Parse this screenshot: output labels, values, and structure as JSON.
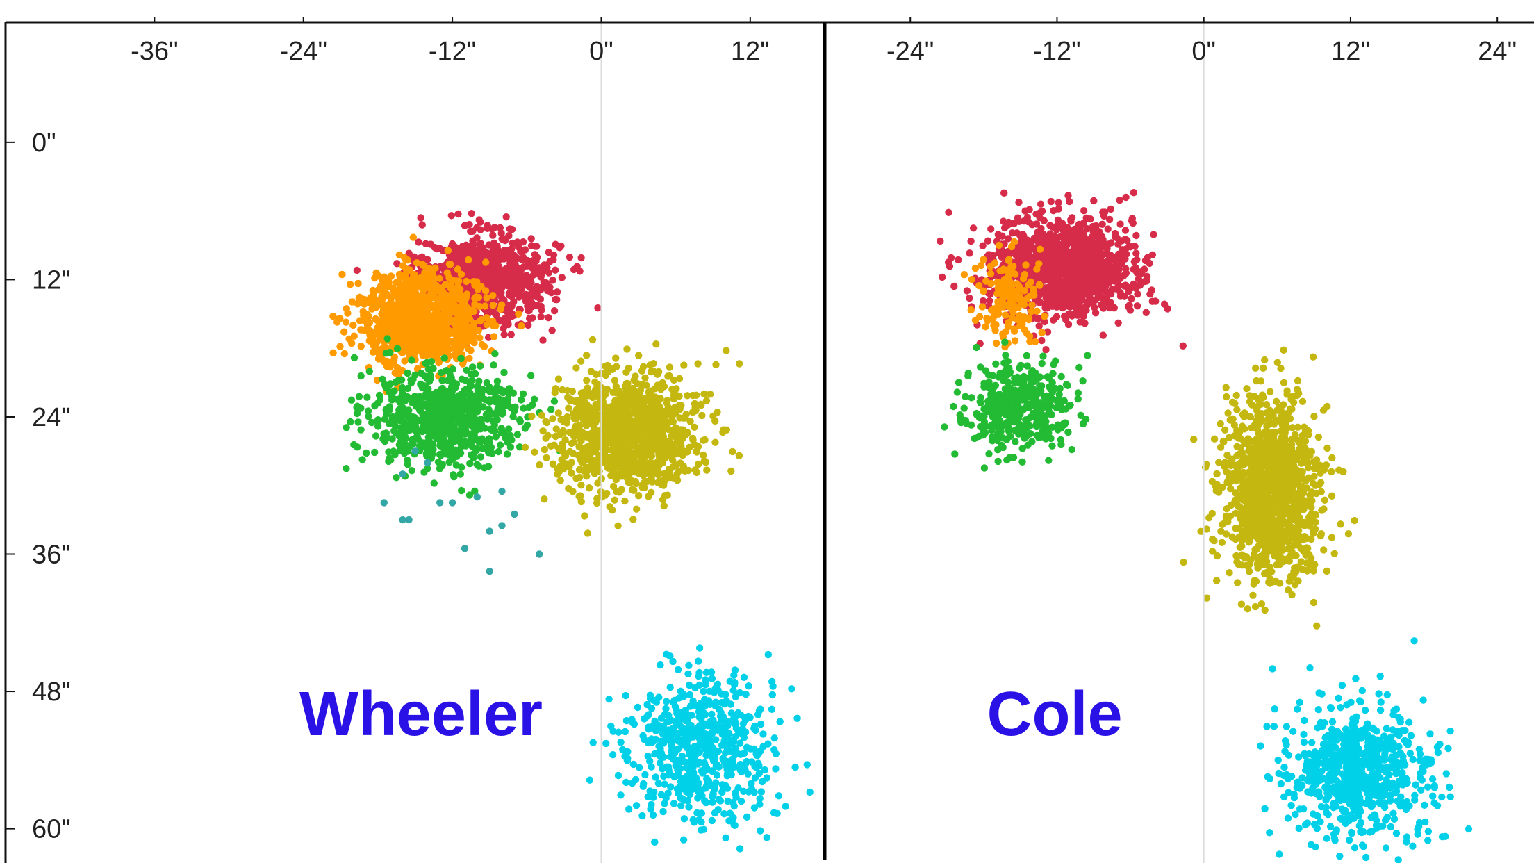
{
  "chart_data": [
    {
      "type": "scatter",
      "title": "Wheeler",
      "xlim": [
        -48,
        18
      ],
      "ylim": [
        -10.5,
        63
      ],
      "x_ticks": [
        -36,
        -24,
        -12,
        0,
        12
      ],
      "x_tick_labels": [
        "-36\"",
        "-24\"",
        "-12\"",
        "0\"",
        "12\""
      ],
      "y_ticks": [
        0,
        12,
        24,
        36,
        48,
        60
      ],
      "y_tick_labels": [
        "0\"",
        "12\"",
        "24\"",
        "36\"",
        "48\"",
        "60\""
      ],
      "grid": false,
      "series": [
        {
          "color": "#d62c4a",
          "cluster": {
            "center": [
              -9.5,
              12
            ],
            "sd": [
              2.6,
              2.0
            ],
            "count": 900
          }
        },
        {
          "color": "#ff9a00",
          "cluster": {
            "center": [
              -14.5,
              15.5
            ],
            "sd": [
              2.4,
              2.0
            ],
            "count": 1100
          }
        },
        {
          "color": "#22bb33",
          "cluster": {
            "center": [
              -12.5,
              24
            ],
            "sd": [
              3.0,
              2.2
            ],
            "count": 700
          }
        },
        {
          "color": "#33a6a6",
          "points": [
            [
              -17.5,
              31.5
            ],
            [
              -16,
              33
            ],
            [
              -15.5,
              33
            ],
            [
              -13,
              31.5
            ],
            [
              -12,
              31.5
            ],
            [
              -10,
              31
            ],
            [
              -8,
              30.5
            ],
            [
              -7,
              32.5
            ],
            [
              -9,
              34
            ],
            [
              -8,
              33.5
            ],
            [
              -11,
              35.5
            ],
            [
              -9,
              37.5
            ],
            [
              -5,
              36
            ],
            [
              -14,
              28
            ],
            [
              -16,
              29
            ],
            [
              -15,
              27
            ]
          ]
        },
        {
          "color": "#c4b810",
          "cluster": {
            "center": [
              2,
              25.5
            ],
            "sd": [
              3.0,
              2.6
            ],
            "count": 1100
          }
        },
        {
          "color": "#00d0e8",
          "cluster": {
            "center": [
              8,
              53
            ],
            "sd": [
              3.0,
              3.2
            ],
            "count": 600
          }
        }
      ]
    },
    {
      "type": "scatter",
      "title": "Cole",
      "xlim": [
        -31,
        27
      ],
      "ylim": [
        -10.5,
        63
      ],
      "x_ticks": [
        -24,
        -12,
        0,
        12,
        24
      ],
      "x_tick_labels": [
        "-24\"",
        "-12\"",
        "0\"",
        "12\"",
        "24\""
      ],
      "y_ticks": [
        0,
        12,
        24,
        36,
        48,
        60
      ],
      "y_tick_labels": [
        "0\"",
        "12\"",
        "24\"",
        "36\"",
        "48\"",
        "60\""
      ],
      "grid": false,
      "series": [
        {
          "color": "#d62c4a",
          "cluster": {
            "center": [
              -11.5,
              11
            ],
            "sd": [
              3.0,
              2.2
            ],
            "count": 1200
          }
        },
        {
          "color": "#ff9a00",
          "cluster": {
            "center": [
              -16,
              13.5
            ],
            "sd": [
              1.4,
              2.0
            ],
            "count": 150
          }
        },
        {
          "color": "#22bb33",
          "cluster": {
            "center": [
              -15,
              23
            ],
            "sd": [
              2.2,
              2.0
            ],
            "count": 400
          }
        },
        {
          "color": "#c4b810",
          "cluster": {
            "center": [
              5.5,
              30.5
            ],
            "sd": [
              2.0,
              4.0
            ],
            "count": 1100
          }
        },
        {
          "color": "#00d0e8",
          "cluster": {
            "center": [
              12.5,
              55
            ],
            "sd": [
              3.0,
              3.0
            ],
            "count": 700
          }
        }
      ]
    }
  ]
}
